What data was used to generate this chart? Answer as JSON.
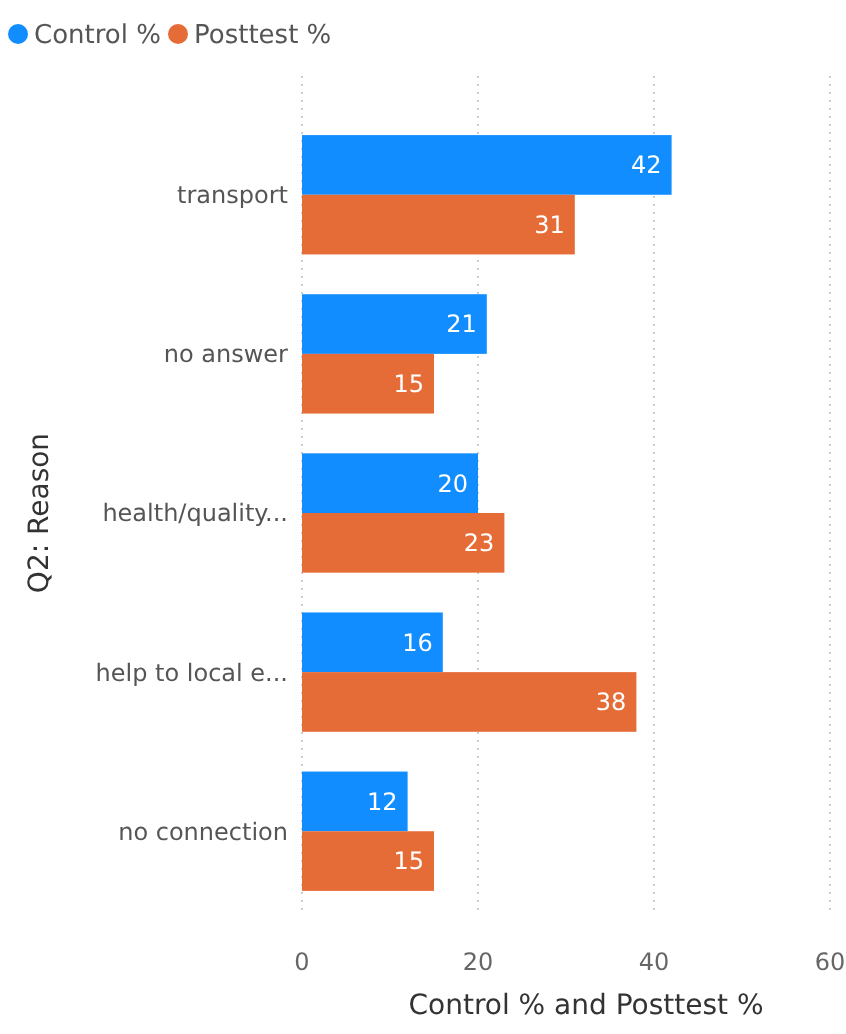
{
  "chart_data": {
    "type": "bar",
    "orientation": "horizontal",
    "xlabel": "Control % and Posttest %",
    "ylabel": "Q2: Reason",
    "categories": [
      "transport",
      "no answer",
      "health/quality...",
      "help to local e...",
      "no connection"
    ],
    "series": [
      {
        "name": "Control %",
        "color": "#118dff",
        "values": [
          42,
          21,
          20,
          16,
          12
        ]
      },
      {
        "name": "Posttest %",
        "color": "#e66c37",
        "values": [
          31,
          15,
          23,
          38,
          15
        ]
      }
    ],
    "xlim": [
      0,
      60
    ],
    "xticks": [
      0,
      20,
      40,
      60
    ],
    "grid": "x",
    "legend": "top left",
    "data_labels": true
  }
}
